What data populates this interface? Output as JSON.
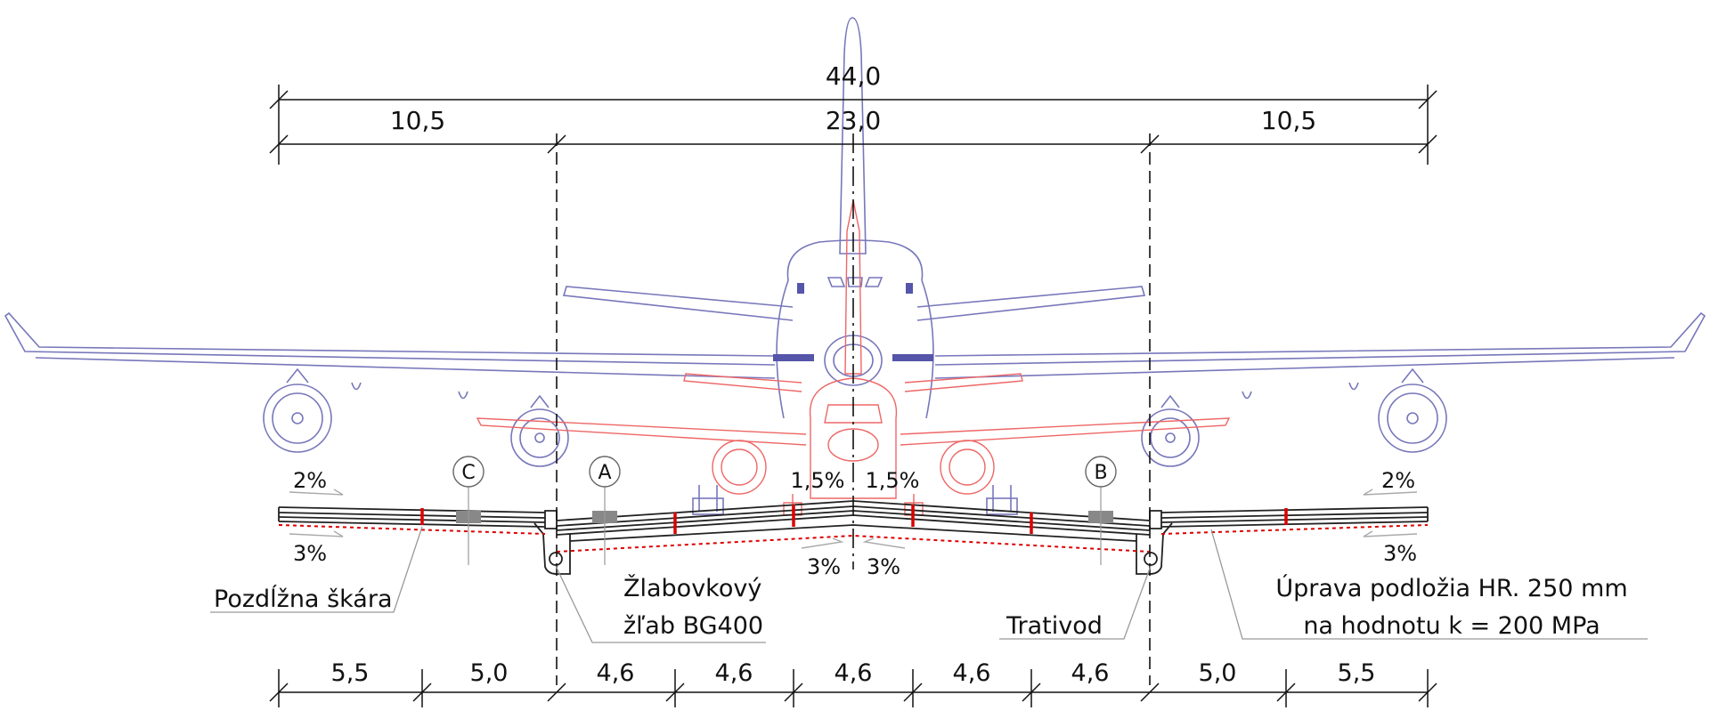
{
  "dimensions": {
    "total_width": "44,0",
    "left_shoulder": "10,5",
    "runway_core": "23,0",
    "right_shoulder": "10,5",
    "segments": [
      "5,5",
      "5,0",
      "4,6",
      "4,6",
      "4,6",
      "4,6",
      "4,6",
      "5,0",
      "5,5"
    ]
  },
  "slopes": {
    "top_left": "2%",
    "top_right": "2%",
    "bottom_left": "3%",
    "bottom_right": "3%",
    "center_top_left": "1,5%",
    "center_top_right": "1,5%",
    "center_bottom_left": "3%",
    "center_bottom_right": "3%"
  },
  "section_markers": [
    "C",
    "A",
    "B"
  ],
  "annotations": {
    "longitudinal_joint": "Pozdĺžna škára",
    "gutter_line1": "Žlabovkový",
    "gutter_line2": "žľab BG400",
    "drain": "Trativod",
    "subgrade_line1": "Úprava podložia HR. 250 mm",
    "subgrade_line2": "na hodnotu k = 200 MPa"
  },
  "colors": {
    "large_aircraft": "#7777bb",
    "small_aircraft": "#ee5555",
    "structure": "#222222",
    "joints": "#dd0000"
  }
}
